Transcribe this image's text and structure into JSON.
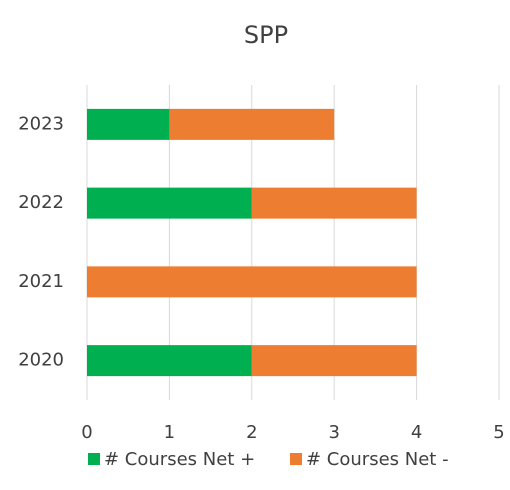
{
  "chart_data": {
    "type": "bar",
    "orientation": "horizontal",
    "stacked": true,
    "title": "SPP",
    "categories": [
      "2020",
      "2021",
      "2022",
      "2023"
    ],
    "series": [
      {
        "name": "# Courses Net +",
        "color": "#00b050",
        "values": [
          2,
          0,
          2,
          1
        ]
      },
      {
        "name": "# Courses Net -",
        "color": "#ed7d31",
        "values": [
          2,
          4,
          2,
          2
        ]
      }
    ],
    "xlim": [
      0,
      5
    ],
    "xticks": [
      0,
      1,
      2,
      3,
      4,
      5
    ],
    "grid": true,
    "legend": "bottom"
  }
}
